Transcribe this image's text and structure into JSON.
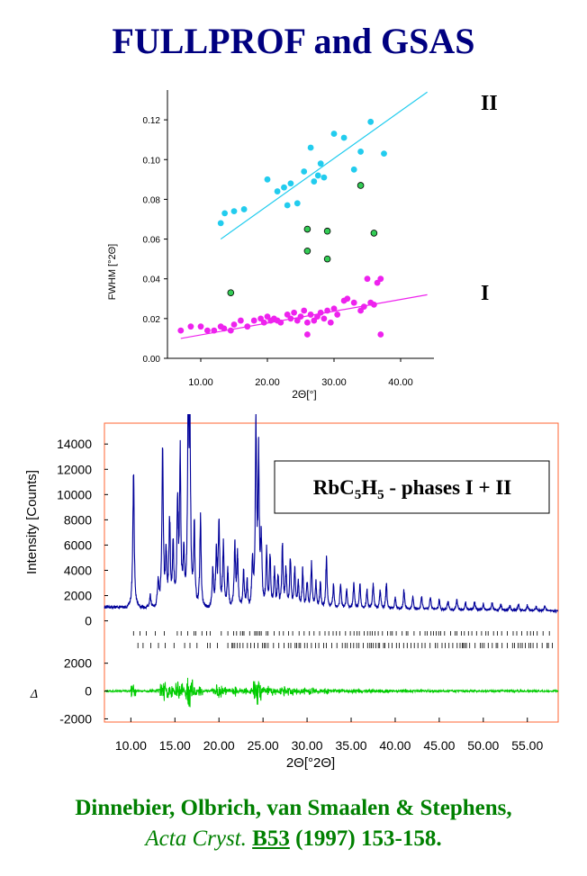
{
  "title": "FULLPROF and GSAS",
  "reference": {
    "authors": "Dinnebier, Olbrich, van Smaalen & Stephens,",
    "journal": "Acta Cryst.",
    "volume": "B53",
    "rest": "(1997) 153-158."
  },
  "chart_data": [
    {
      "type": "scatter",
      "xlabel": "2Θ[°]",
      "ylabel": "FWHM [°2Θ]",
      "xlim": [
        5,
        45
      ],
      "ylim": [
        0,
        0.135
      ],
      "xticks": [
        "10.00",
        "20.00",
        "30.00",
        "40.00"
      ],
      "yticks": [
        "0.00",
        "0.02",
        "0.04",
        "0.06",
        "0.08",
        "0.10",
        "0.12"
      ],
      "colors": {
        "phase_II": "#22ccee",
        "phase_I": "#ee22ee",
        "extra": "#33cc55"
      },
      "labels": {
        "upper": "II",
        "lower": "I"
      },
      "series": [
        {
          "key": "phase_II",
          "points": [
            [
              13,
              0.068
            ],
            [
              13.6,
              0.073
            ],
            [
              15,
              0.074
            ],
            [
              16.5,
              0.075
            ],
            [
              20,
              0.09
            ],
            [
              21.5,
              0.084
            ],
            [
              22.5,
              0.086
            ],
            [
              23,
              0.077
            ],
            [
              23.5,
              0.088
            ],
            [
              24.5,
              0.078
            ],
            [
              25.5,
              0.094
            ],
            [
              26.5,
              0.106
            ],
            [
              27,
              0.089
            ],
            [
              27.6,
              0.092
            ],
            [
              28,
              0.098
            ],
            [
              28.5,
              0.091
            ],
            [
              30,
              0.113
            ],
            [
              31.5,
              0.111
            ],
            [
              33,
              0.095
            ],
            [
              34,
              0.104
            ],
            [
              35.5,
              0.119
            ],
            [
              37.5,
              0.103
            ]
          ],
          "fit": [
            [
              13,
              0.06
            ],
            [
              44,
              0.134
            ]
          ]
        },
        {
          "key": "phase_I",
          "points": [
            [
              7,
              0.014
            ],
            [
              8.5,
              0.016
            ],
            [
              10,
              0.016
            ],
            [
              11,
              0.014
            ],
            [
              12,
              0.014
            ],
            [
              13,
              0.016
            ],
            [
              13.5,
              0.015
            ],
            [
              14.5,
              0.014
            ],
            [
              15,
              0.017
            ],
            [
              16,
              0.019
            ],
            [
              17,
              0.016
            ],
            [
              18,
              0.019
            ],
            [
              19,
              0.02
            ],
            [
              19.5,
              0.018
            ],
            [
              20,
              0.021
            ],
            [
              20.5,
              0.019
            ],
            [
              21,
              0.02
            ],
            [
              21.5,
              0.019
            ],
            [
              22,
              0.018
            ],
            [
              23,
              0.022
            ],
            [
              23.5,
              0.02
            ],
            [
              24,
              0.023
            ],
            [
              24.5,
              0.019
            ],
            [
              25,
              0.021
            ],
            [
              25.5,
              0.024
            ],
            [
              26,
              0.018
            ],
            [
              26.5,
              0.022
            ],
            [
              27,
              0.019
            ],
            [
              27.5,
              0.021
            ],
            [
              28,
              0.023
            ],
            [
              28.5,
              0.02
            ],
            [
              29,
              0.024
            ],
            [
              29.5,
              0.018
            ],
            [
              30,
              0.025
            ],
            [
              30.5,
              0.022
            ],
            [
              31.5,
              0.029
            ],
            [
              32,
              0.03
            ],
            [
              33,
              0.028
            ],
            [
              34,
              0.024
            ],
            [
              34.5,
              0.026
            ],
            [
              35,
              0.04
            ],
            [
              35.5,
              0.028
            ],
            [
              36,
              0.027
            ],
            [
              36.5,
              0.038
            ],
            [
              37,
              0.04
            ],
            [
              26,
              0.012
            ],
            [
              37,
              0.012
            ]
          ],
          "fit": [
            [
              7,
              0.01
            ],
            [
              44,
              0.032
            ]
          ]
        },
        {
          "key": "extra",
          "points": [
            [
              14.5,
              0.033
            ],
            [
              26,
              0.054
            ],
            [
              26,
              0.065
            ],
            [
              29,
              0.05
            ],
            [
              29,
              0.064
            ],
            [
              34,
              0.087
            ],
            [
              36,
              0.063
            ]
          ]
        }
      ]
    },
    {
      "type": "line",
      "xlabel": "2Θ[°2Θ]",
      "ylabel": "Intensity [Counts]",
      "diff_label": "Δ",
      "xlim": [
        7,
        58.5
      ],
      "ylim": [
        -600,
        14800
      ],
      "diff_ylim": [
        -2100,
        2300
      ],
      "xticks": [
        "10.00",
        "15.00",
        "20.00",
        "25.00",
        "30.00",
        "35.00",
        "40.00",
        "45.00",
        "50.00",
        "55.00"
      ],
      "yticks": [
        "0",
        "2000",
        "4000",
        "6000",
        "8000",
        "10000",
        "12000",
        "14000"
      ],
      "diff_yticks": [
        "-2000",
        "0",
        "2000"
      ],
      "legend_text": "RbC5H5 - phases I + II",
      "legend_main": "RbC",
      "legend_sub1": "5",
      "legend_mid": "H",
      "legend_sub2": "5",
      "legend_tail": " - phases I + II",
      "colors": {
        "pattern": "#000099",
        "difference": "#00cc00",
        "frame": "#ff6633",
        "ticks": "#000000"
      },
      "peaks": [
        [
          10.3,
          10500
        ],
        [
          12.2,
          1000
        ],
        [
          13.1,
          2000
        ],
        [
          13.6,
          13000
        ],
        [
          14.0,
          4000
        ],
        [
          14.4,
          7000
        ],
        [
          14.8,
          5000
        ],
        [
          15.3,
          8000
        ],
        [
          15.6,
          12000
        ],
        [
          16.0,
          4000
        ],
        [
          16.5,
          14500
        ],
        [
          16.7,
          14000
        ],
        [
          17.2,
          6000
        ],
        [
          17.9,
          7000
        ],
        [
          19.3,
          3000
        ],
        [
          19.7,
          4000
        ],
        [
          20.0,
          7000
        ],
        [
          20.5,
          5000
        ],
        [
          21.0,
          3000
        ],
        [
          21.8,
          5000
        ],
        [
          22.1,
          4000
        ],
        [
          22.8,
          3000
        ],
        [
          23.2,
          2000
        ],
        [
          23.8,
          3500
        ],
        [
          24.2,
          13500
        ],
        [
          24.5,
          11000
        ],
        [
          24.8,
          5000
        ],
        [
          25.4,
          4500
        ],
        [
          25.8,
          4000
        ],
        [
          26.3,
          3000
        ],
        [
          26.7,
          2500
        ],
        [
          27.2,
          5000
        ],
        [
          27.6,
          3000
        ],
        [
          28.1,
          4000
        ],
        [
          28.6,
          3000
        ],
        [
          29.0,
          2000
        ],
        [
          29.5,
          3000
        ],
        [
          30.0,
          2000
        ],
        [
          30.5,
          3500
        ],
        [
          31.0,
          2000
        ],
        [
          31.5,
          2000
        ],
        [
          32.2,
          4000
        ],
        [
          33.0,
          2000
        ],
        [
          33.8,
          2000
        ],
        [
          34.5,
          1500
        ],
        [
          35.3,
          2000
        ],
        [
          36.0,
          2000
        ],
        [
          36.8,
          1500
        ],
        [
          37.5,
          2000
        ],
        [
          38.3,
          1500
        ],
        [
          39.0,
          2000
        ],
        [
          40.0,
          1000
        ],
        [
          41.0,
          1500
        ],
        [
          42.0,
          1000
        ],
        [
          43.0,
          1000
        ],
        [
          44.0,
          1000
        ],
        [
          45.0,
          800
        ],
        [
          46.0,
          700
        ],
        [
          47.0,
          800
        ],
        [
          48.0,
          600
        ],
        [
          49.0,
          700
        ],
        [
          50.0,
          500
        ],
        [
          51.0,
          600
        ],
        [
          52.0,
          500
        ],
        [
          53.0,
          400
        ],
        [
          54.0,
          500
        ],
        [
          55.0,
          400
        ],
        [
          56.0,
          300
        ],
        [
          57.0,
          400
        ]
      ]
    }
  ]
}
